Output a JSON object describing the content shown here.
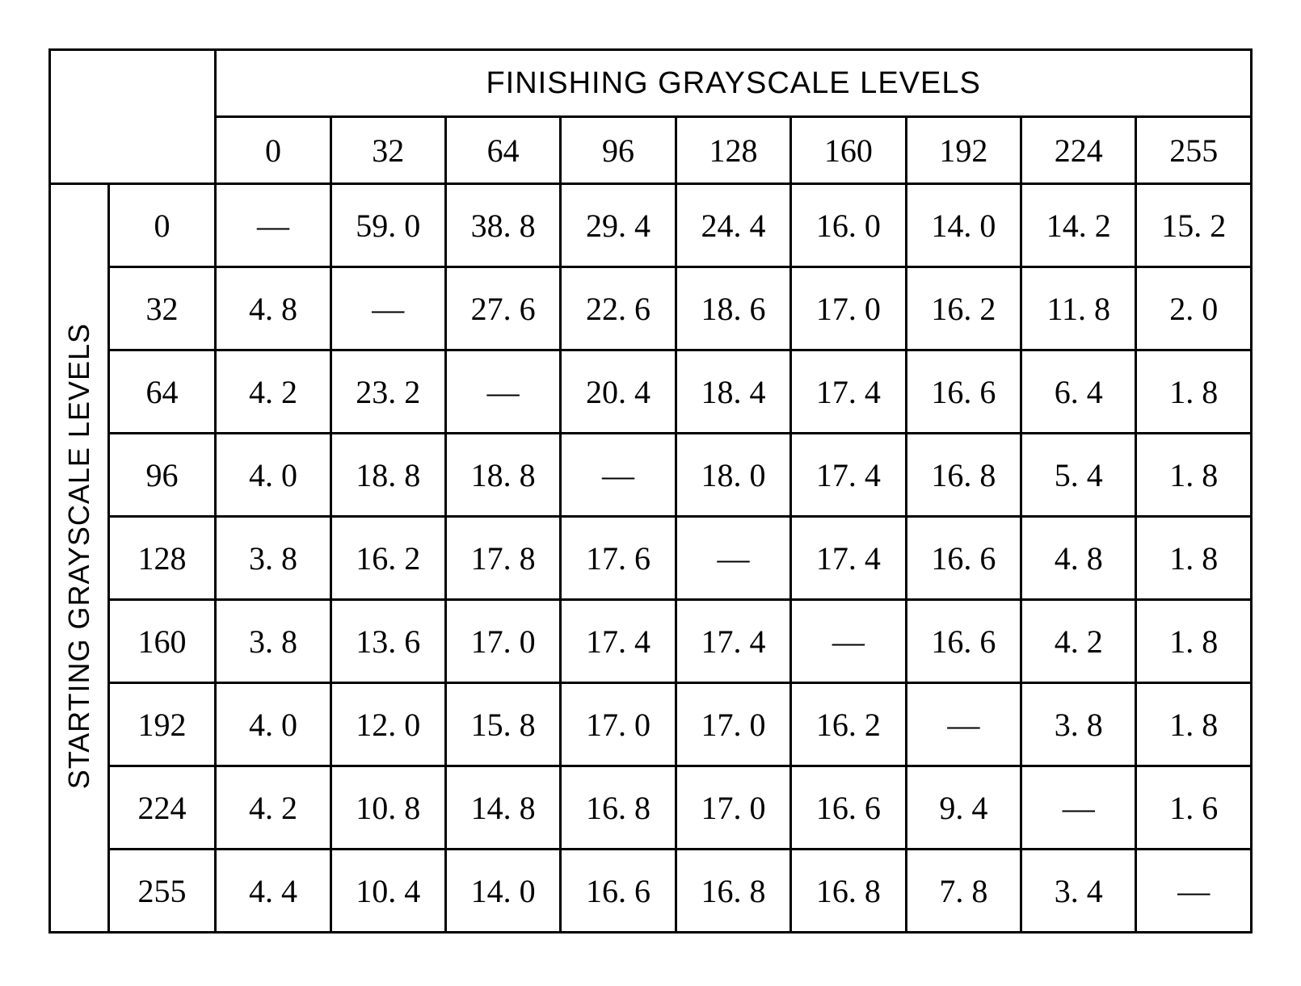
{
  "table": {
    "type": "table",
    "col_title": "FINISHING GRAYSCALE LEVELS",
    "row_title": "STARTING GRAYSCALE LEVELS",
    "col_levels": [
      "0",
      "32",
      "64",
      "96",
      "128",
      "160",
      "192",
      "224",
      "255"
    ],
    "row_levels": [
      "0",
      "32",
      "64",
      "96",
      "128",
      "160",
      "192",
      "224",
      "255"
    ],
    "dash": "—",
    "rows": [
      [
        "—",
        "59. 0",
        "38. 8",
        "29. 4",
        "24. 4",
        "16. 0",
        "14. 0",
        "14. 2",
        "15. 2"
      ],
      [
        "4. 8",
        "—",
        "27. 6",
        "22. 6",
        "18. 6",
        "17. 0",
        "16. 2",
        "11. 8",
        "2. 0"
      ],
      [
        "4. 2",
        "23. 2",
        "—",
        "20. 4",
        "18. 4",
        "17. 4",
        "16. 6",
        "6. 4",
        "1. 8"
      ],
      [
        "4. 0",
        "18. 8",
        "18. 8",
        "—",
        "18. 0",
        "17. 4",
        "16. 8",
        "5. 4",
        "1. 8"
      ],
      [
        "3. 8",
        "16. 2",
        "17. 8",
        "17. 6",
        "—",
        "17. 4",
        "16. 6",
        "4. 8",
        "1. 8"
      ],
      [
        "3. 8",
        "13. 6",
        "17. 0",
        "17. 4",
        "17. 4",
        "—",
        "16. 6",
        "4. 2",
        "1. 8"
      ],
      [
        "4. 0",
        "12. 0",
        "15. 8",
        "17. 0",
        "17. 0",
        "16. 2",
        "—",
        "3. 8",
        "1. 8"
      ],
      [
        "4. 2",
        "10. 8",
        "14. 8",
        "16. 8",
        "17. 0",
        "16. 6",
        "9. 4",
        "—",
        "1. 6"
      ],
      [
        "4. 4",
        "10. 4",
        "14. 0",
        "16. 6",
        "16. 8",
        "16. 8",
        "7. 8",
        "3. 4",
        "—"
      ]
    ],
    "colors": {
      "border": "#000000",
      "background": "#ffffff",
      "text": "#000000"
    },
    "fontsize_header": 38,
    "fontsize_cells": 40
  }
}
